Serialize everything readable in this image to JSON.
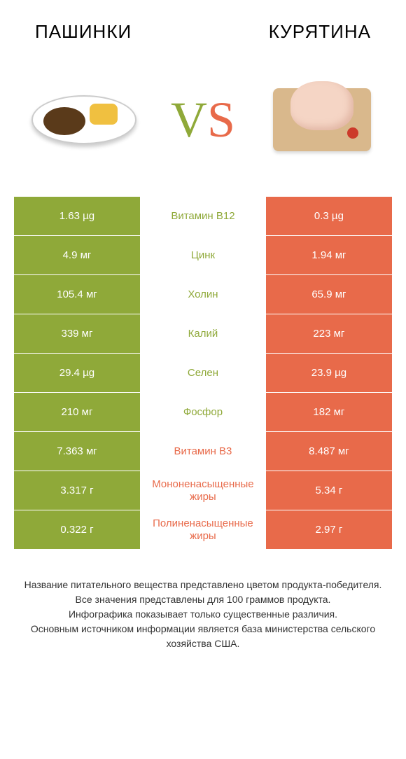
{
  "colors": {
    "left_bg": "#8fa939",
    "right_bg": "#e86a4a",
    "vs_v": "#8fa939",
    "vs_s": "#e86a4a"
  },
  "header": {
    "left_title": "Пашинки",
    "right_title": "Курятина",
    "vs_v": "V",
    "vs_s": "S"
  },
  "rows": [
    {
      "left": "1.63 µg",
      "mid": "Витамин B12",
      "right": "0.3 µg",
      "mid_color": "#8fa939"
    },
    {
      "left": "4.9 мг",
      "mid": "Цинк",
      "right": "1.94 мг",
      "mid_color": "#8fa939"
    },
    {
      "left": "105.4 мг",
      "mid": "Холин",
      "right": "65.9 мг",
      "mid_color": "#8fa939"
    },
    {
      "left": "339 мг",
      "mid": "Калий",
      "right": "223 мг",
      "mid_color": "#8fa939"
    },
    {
      "left": "29.4 µg",
      "mid": "Селен",
      "right": "23.9 µg",
      "mid_color": "#8fa939"
    },
    {
      "left": "210 мг",
      "mid": "Фосфор",
      "right": "182 мг",
      "mid_color": "#8fa939"
    },
    {
      "left": "7.363 мг",
      "mid": "Витамин B3",
      "right": "8.487 мг",
      "mid_color": "#e86a4a"
    },
    {
      "left": "3.317 г",
      "mid": "Мононенасыщенные жиры",
      "right": "5.34 г",
      "mid_color": "#e86a4a"
    },
    {
      "left": "0.322 г",
      "mid": "Полиненасыщенные жиры",
      "right": "2.97 г",
      "mid_color": "#e86a4a"
    }
  ],
  "footer": {
    "line1": "Название питательного вещества представлено цветом продукта-победителя.",
    "line2": "Все значения представлены для 100 граммов продукта.",
    "line3": "Инфографика показывает только существенные различия.",
    "line4": "Основным источником информации является база министерства сельского хозяйства США."
  }
}
